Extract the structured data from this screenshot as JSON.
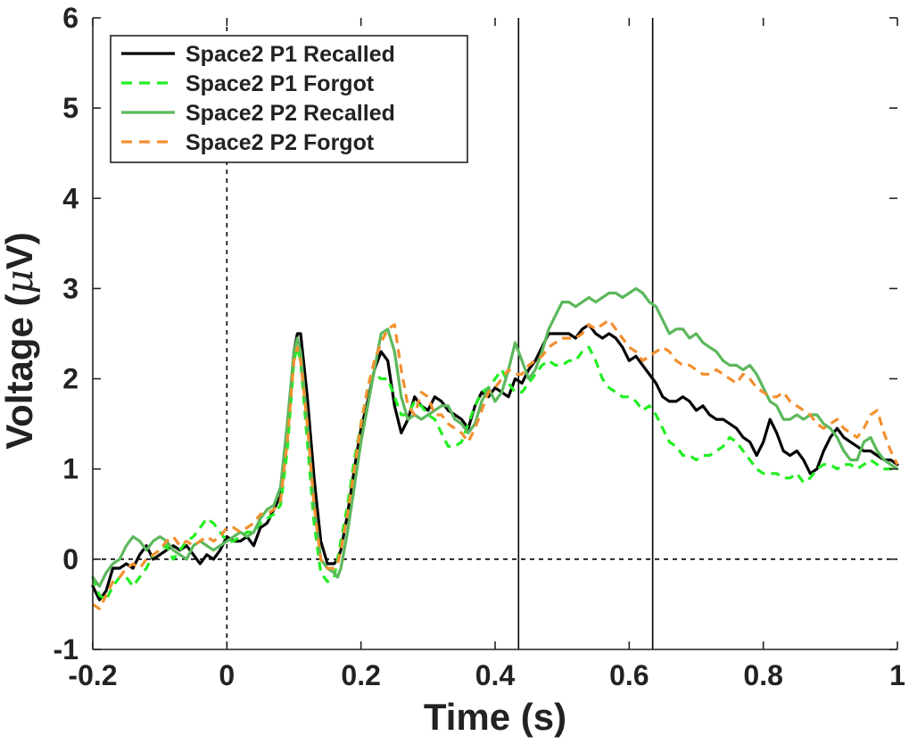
{
  "chart_data": {
    "type": "line",
    "title": "",
    "xlabel": "Time (s)",
    "ylabel": "Voltage (μV)",
    "ylabel_parts": {
      "before": "Voltage (",
      "symbol": "μ",
      "after": "V)"
    },
    "xlim": [
      -0.2,
      1.0
    ],
    "ylim": [
      -1,
      6
    ],
    "xticks": [
      -0.2,
      0,
      0.2,
      0.4,
      0.6,
      0.8,
      1
    ],
    "xtick_labels": [
      "-0.2",
      "0",
      "0.2",
      "0.4",
      "0.6",
      "0.8",
      "1"
    ],
    "yticks": [
      -1,
      0,
      1,
      2,
      3,
      4,
      5,
      6
    ],
    "ytick_labels": [
      "-1",
      "0",
      "1",
      "2",
      "3",
      "4",
      "5",
      "6"
    ],
    "grid": false,
    "legend_position": "top-left",
    "reference_lines": {
      "x_dashed": [
        0
      ],
      "y_dashed": [
        0
      ],
      "x_solid": [
        0.435,
        0.635
      ]
    },
    "series": [
      {
        "name": "Space2 P1 Recalled",
        "color": "#000000",
        "style": "solid",
        "x": [
          -0.2,
          -0.19,
          -0.18,
          -0.17,
          -0.16,
          -0.15,
          -0.14,
          -0.13,
          -0.12,
          -0.11,
          -0.1,
          -0.09,
          -0.08,
          -0.07,
          -0.06,
          -0.05,
          -0.04,
          -0.03,
          -0.02,
          -0.01,
          0,
          0.01,
          0.02,
          0.03,
          0.04,
          0.05,
          0.06,
          0.07,
          0.08,
          0.09,
          0.1,
          0.105,
          0.11,
          0.12,
          0.13,
          0.14,
          0.15,
          0.16,
          0.165,
          0.17,
          0.18,
          0.19,
          0.2,
          0.21,
          0.22,
          0.23,
          0.24,
          0.25,
          0.26,
          0.27,
          0.28,
          0.29,
          0.3,
          0.31,
          0.32,
          0.33,
          0.34,
          0.35,
          0.36,
          0.37,
          0.38,
          0.39,
          0.4,
          0.41,
          0.42,
          0.43,
          0.44,
          0.45,
          0.46,
          0.47,
          0.48,
          0.49,
          0.5,
          0.51,
          0.52,
          0.53,
          0.54,
          0.55,
          0.56,
          0.57,
          0.58,
          0.59,
          0.6,
          0.61,
          0.62,
          0.63,
          0.64,
          0.65,
          0.66,
          0.67,
          0.68,
          0.69,
          0.7,
          0.71,
          0.72,
          0.73,
          0.74,
          0.75,
          0.76,
          0.77,
          0.78,
          0.79,
          0.8,
          0.81,
          0.82,
          0.83,
          0.84,
          0.85,
          0.86,
          0.87,
          0.88,
          0.89,
          0.9,
          0.91,
          0.92,
          0.93,
          0.94,
          0.95,
          0.96,
          0.97,
          0.98,
          0.99,
          1.0
        ],
        "y": [
          -0.3,
          -0.45,
          -0.35,
          -0.1,
          -0.1,
          -0.05,
          -0.1,
          0.05,
          0.15,
          0.0,
          0.05,
          0.1,
          0.15,
          0.1,
          0.15,
          0.05,
          -0.05,
          0.05,
          0.0,
          0.1,
          0.25,
          0.2,
          0.2,
          0.25,
          0.15,
          0.35,
          0.4,
          0.55,
          0.7,
          1.4,
          2.3,
          2.5,
          2.5,
          1.8,
          0.9,
          0.2,
          -0.05,
          -0.05,
          0.0,
          0.1,
          0.5,
          1.0,
          1.45,
          1.75,
          2.1,
          2.3,
          2.2,
          1.7,
          1.4,
          1.55,
          1.8,
          1.7,
          1.65,
          1.8,
          1.75,
          1.65,
          1.6,
          1.55,
          1.45,
          1.7,
          1.85,
          1.8,
          1.9,
          1.85,
          1.8,
          2.0,
          1.95,
          2.1,
          2.2,
          2.35,
          2.5,
          2.5,
          2.5,
          2.5,
          2.45,
          2.55,
          2.6,
          2.5,
          2.45,
          2.5,
          2.45,
          2.35,
          2.2,
          2.25,
          2.15,
          2.05,
          1.95,
          1.8,
          1.75,
          1.75,
          1.8,
          1.75,
          1.65,
          1.7,
          1.6,
          1.55,
          1.55,
          1.5,
          1.45,
          1.35,
          1.3,
          1.15,
          1.3,
          1.55,
          1.4,
          1.2,
          1.15,
          1.2,
          1.1,
          0.95,
          1.0,
          1.2,
          1.35,
          1.45,
          1.35,
          1.3,
          1.25,
          1.2,
          1.2,
          1.15,
          1.1,
          1.1,
          1.05
        ]
      },
      {
        "name": "Space2 P1 Forgot",
        "color": "#22ee22",
        "style": "dashed",
        "x": [
          -0.2,
          -0.19,
          -0.18,
          -0.17,
          -0.16,
          -0.15,
          -0.14,
          -0.13,
          -0.12,
          -0.11,
          -0.1,
          -0.09,
          -0.08,
          -0.07,
          -0.06,
          -0.05,
          -0.04,
          -0.03,
          -0.02,
          -0.01,
          0,
          0.01,
          0.02,
          0.03,
          0.04,
          0.05,
          0.06,
          0.07,
          0.08,
          0.09,
          0.1,
          0.105,
          0.11,
          0.12,
          0.13,
          0.14,
          0.15,
          0.16,
          0.165,
          0.17,
          0.18,
          0.19,
          0.2,
          0.21,
          0.22,
          0.23,
          0.24,
          0.25,
          0.26,
          0.27,
          0.28,
          0.29,
          0.3,
          0.31,
          0.32,
          0.33,
          0.34,
          0.35,
          0.36,
          0.37,
          0.38,
          0.39,
          0.4,
          0.41,
          0.42,
          0.43,
          0.44,
          0.45,
          0.46,
          0.47,
          0.48,
          0.49,
          0.5,
          0.51,
          0.52,
          0.53,
          0.54,
          0.55,
          0.56,
          0.57,
          0.58,
          0.59,
          0.6,
          0.61,
          0.62,
          0.63,
          0.64,
          0.65,
          0.66,
          0.67,
          0.68,
          0.69,
          0.7,
          0.71,
          0.72,
          0.73,
          0.74,
          0.75,
          0.76,
          0.77,
          0.78,
          0.79,
          0.8,
          0.81,
          0.82,
          0.83,
          0.84,
          0.85,
          0.86,
          0.87,
          0.88,
          0.89,
          0.9,
          0.91,
          0.92,
          0.93,
          0.94,
          0.95,
          0.96,
          0.97,
          0.98,
          0.99,
          1.0
        ],
        "y": [
          -0.2,
          -0.4,
          -0.45,
          -0.3,
          -0.2,
          -0.2,
          -0.3,
          -0.2,
          -0.1,
          0.05,
          0.1,
          0.15,
          0.0,
          0.1,
          0.2,
          0.25,
          0.35,
          0.45,
          0.4,
          0.3,
          0.2,
          0.2,
          0.25,
          0.3,
          0.3,
          0.4,
          0.45,
          0.5,
          0.6,
          1.2,
          2.2,
          2.35,
          2.2,
          1.3,
          0.4,
          -0.15,
          -0.25,
          -0.2,
          0.0,
          0.2,
          0.6,
          1.1,
          1.5,
          1.9,
          2.05,
          2.0,
          2.0,
          1.8,
          1.6,
          1.6,
          1.75,
          1.7,
          1.6,
          1.55,
          1.4,
          1.25,
          1.25,
          1.3,
          1.5,
          1.7,
          1.85,
          1.9,
          2.0,
          2.1,
          1.95,
          1.85,
          1.85,
          1.95,
          2.05,
          2.15,
          2.2,
          2.15,
          2.15,
          2.2,
          2.2,
          2.3,
          2.35,
          2.2,
          2.0,
          1.9,
          1.85,
          1.8,
          1.8,
          1.75,
          1.65,
          1.7,
          1.6,
          1.45,
          1.3,
          1.25,
          1.15,
          1.15,
          1.1,
          1.15,
          1.15,
          1.2,
          1.25,
          1.35,
          1.3,
          1.2,
          1.1,
          1.0,
          0.95,
          0.95,
          0.95,
          0.9,
          0.9,
          0.95,
          0.85,
          0.9,
          1.0,
          1.05,
          1.05,
          1.0,
          1.05,
          1.05,
          1.0,
          1.05,
          1.1,
          1.05,
          1.0,
          1.0,
          1.0
        ]
      },
      {
        "name": "Space2 P2 Recalled",
        "color": "#5cb85c",
        "style": "solid",
        "x": [
          -0.2,
          -0.19,
          -0.18,
          -0.17,
          -0.16,
          -0.15,
          -0.14,
          -0.13,
          -0.12,
          -0.11,
          -0.1,
          -0.09,
          -0.08,
          -0.07,
          -0.06,
          -0.05,
          -0.04,
          -0.03,
          -0.02,
          -0.01,
          0,
          0.01,
          0.02,
          0.03,
          0.04,
          0.05,
          0.06,
          0.07,
          0.08,
          0.09,
          0.1,
          0.105,
          0.11,
          0.12,
          0.13,
          0.14,
          0.15,
          0.16,
          0.165,
          0.17,
          0.18,
          0.19,
          0.2,
          0.21,
          0.22,
          0.23,
          0.24,
          0.25,
          0.26,
          0.27,
          0.28,
          0.29,
          0.3,
          0.31,
          0.32,
          0.33,
          0.34,
          0.35,
          0.36,
          0.37,
          0.38,
          0.39,
          0.4,
          0.41,
          0.42,
          0.43,
          0.44,
          0.45,
          0.46,
          0.47,
          0.48,
          0.49,
          0.5,
          0.51,
          0.52,
          0.53,
          0.54,
          0.55,
          0.56,
          0.57,
          0.58,
          0.59,
          0.6,
          0.61,
          0.62,
          0.63,
          0.64,
          0.65,
          0.66,
          0.67,
          0.68,
          0.69,
          0.7,
          0.71,
          0.72,
          0.73,
          0.74,
          0.75,
          0.76,
          0.77,
          0.78,
          0.79,
          0.8,
          0.81,
          0.82,
          0.83,
          0.84,
          0.85,
          0.86,
          0.87,
          0.88,
          0.89,
          0.9,
          0.91,
          0.92,
          0.93,
          0.94,
          0.95,
          0.96,
          0.97,
          0.98,
          0.99,
          1.0
        ],
        "y": [
          -0.2,
          -0.3,
          -0.15,
          -0.05,
          0.0,
          0.15,
          0.25,
          0.2,
          0.1,
          0.2,
          0.25,
          0.2,
          0.1,
          0.05,
          0.0,
          0.15,
          0.2,
          0.15,
          0.1,
          0.15,
          0.2,
          0.25,
          0.3,
          0.25,
          0.3,
          0.45,
          0.55,
          0.6,
          0.8,
          1.5,
          2.3,
          2.45,
          2.3,
          1.5,
          0.6,
          0.0,
          -0.1,
          -0.15,
          -0.2,
          -0.1,
          0.3,
          0.8,
          1.3,
          1.7,
          2.1,
          2.5,
          2.55,
          2.3,
          1.8,
          1.55,
          1.6,
          1.55,
          1.6,
          1.65,
          1.7,
          1.7,
          1.55,
          1.5,
          1.4,
          1.5,
          1.75,
          1.9,
          1.75,
          1.85,
          2.1,
          2.4,
          2.2,
          2.0,
          2.1,
          2.3,
          2.55,
          2.7,
          2.85,
          2.85,
          2.8,
          2.85,
          2.9,
          2.85,
          2.9,
          2.95,
          2.95,
          2.9,
          2.95,
          3.0,
          2.95,
          2.85,
          2.8,
          2.65,
          2.5,
          2.55,
          2.55,
          2.45,
          2.5,
          2.4,
          2.35,
          2.3,
          2.2,
          2.15,
          2.15,
          2.1,
          2.15,
          2.05,
          1.9,
          1.75,
          1.7,
          1.55,
          1.55,
          1.6,
          1.55,
          1.6,
          1.6,
          1.5,
          1.45,
          1.35,
          1.2,
          1.1,
          1.1,
          1.3,
          1.35,
          1.2,
          1.1,
          1.05,
          1.0
        ]
      },
      {
        "name": "Space2 P2 Forgot",
        "color": "#f39030",
        "style": "dashed",
        "x": [
          -0.2,
          -0.19,
          -0.18,
          -0.17,
          -0.16,
          -0.15,
          -0.14,
          -0.13,
          -0.12,
          -0.11,
          -0.1,
          -0.09,
          -0.08,
          -0.07,
          -0.06,
          -0.05,
          -0.04,
          -0.03,
          -0.02,
          -0.01,
          0,
          0.01,
          0.02,
          0.03,
          0.04,
          0.05,
          0.06,
          0.07,
          0.08,
          0.09,
          0.1,
          0.105,
          0.11,
          0.12,
          0.13,
          0.14,
          0.15,
          0.16,
          0.165,
          0.17,
          0.18,
          0.19,
          0.2,
          0.21,
          0.22,
          0.23,
          0.24,
          0.25,
          0.26,
          0.27,
          0.28,
          0.29,
          0.3,
          0.31,
          0.32,
          0.33,
          0.34,
          0.35,
          0.36,
          0.37,
          0.38,
          0.39,
          0.4,
          0.41,
          0.42,
          0.43,
          0.44,
          0.45,
          0.46,
          0.47,
          0.48,
          0.49,
          0.5,
          0.51,
          0.52,
          0.53,
          0.54,
          0.55,
          0.56,
          0.57,
          0.58,
          0.59,
          0.6,
          0.61,
          0.62,
          0.63,
          0.64,
          0.65,
          0.66,
          0.67,
          0.68,
          0.69,
          0.7,
          0.71,
          0.72,
          0.73,
          0.74,
          0.75,
          0.76,
          0.77,
          0.78,
          0.79,
          0.8,
          0.81,
          0.82,
          0.83,
          0.84,
          0.85,
          0.86,
          0.87,
          0.88,
          0.89,
          0.9,
          0.91,
          0.92,
          0.93,
          0.94,
          0.95,
          0.96,
          0.97,
          0.98,
          0.99,
          1.0
        ],
        "y": [
          -0.5,
          -0.55,
          -0.4,
          -0.25,
          -0.2,
          -0.1,
          -0.05,
          -0.1,
          0.0,
          0.05,
          0.1,
          0.2,
          0.25,
          0.15,
          0.2,
          0.15,
          0.2,
          0.25,
          0.2,
          0.25,
          0.35,
          0.35,
          0.3,
          0.35,
          0.4,
          0.5,
          0.5,
          0.55,
          0.65,
          1.3,
          2.2,
          2.35,
          2.2,
          1.5,
          0.6,
          0.0,
          -0.1,
          -0.1,
          -0.05,
          0.1,
          0.5,
          1.0,
          1.5,
          1.9,
          2.2,
          2.4,
          2.55,
          2.6,
          2.1,
          1.7,
          1.6,
          1.85,
          1.8,
          1.6,
          1.6,
          1.5,
          1.45,
          1.4,
          1.3,
          1.45,
          1.65,
          1.85,
          1.9,
          2.0,
          2.1,
          2.05,
          2.05,
          2.15,
          2.2,
          2.25,
          2.35,
          2.4,
          2.45,
          2.45,
          2.45,
          2.5,
          2.6,
          2.55,
          2.6,
          2.65,
          2.55,
          2.45,
          2.35,
          2.3,
          2.2,
          2.25,
          2.3,
          2.35,
          2.3,
          2.2,
          2.15,
          2.15,
          2.1,
          2.05,
          2.05,
          2.1,
          2.05,
          2.0,
          1.95,
          2.05,
          2.0,
          1.9,
          1.85,
          1.8,
          1.8,
          1.85,
          1.75,
          1.7,
          1.65,
          1.6,
          1.5,
          1.45,
          1.5,
          1.55,
          1.45,
          1.4,
          1.35,
          1.45,
          1.6,
          1.65,
          1.4,
          1.2,
          1.05
        ]
      }
    ]
  }
}
